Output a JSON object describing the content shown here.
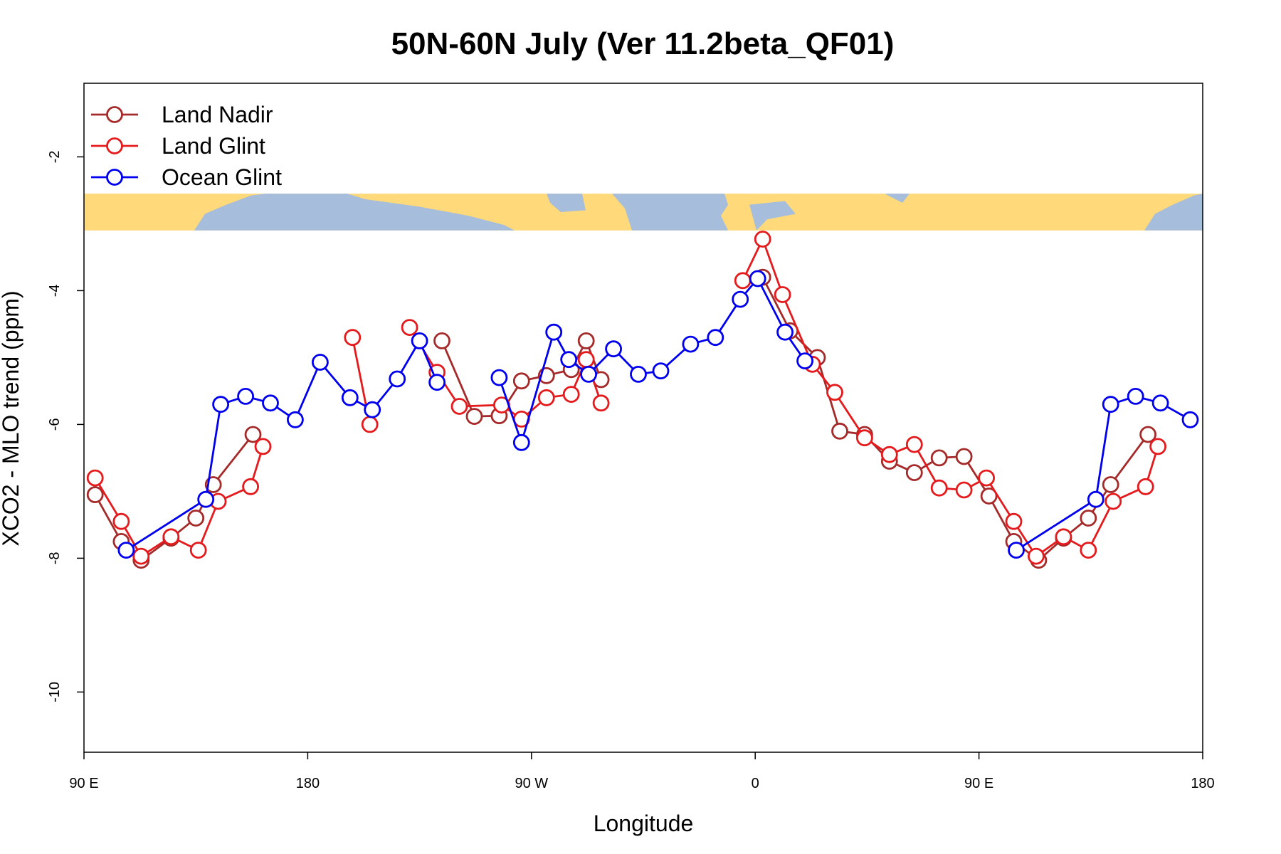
{
  "chart_data": {
    "type": "line",
    "title": "50N-60N July (Ver 11.2beta_QF01)",
    "xlabel": "Longitude",
    "ylabel": "XCO2 - MLO trend (ppm)",
    "xlim": [
      90,
      540
    ],
    "ylim": [
      -10.9,
      -0.9
    ],
    "x_ticks": [
      {
        "value": 90,
        "label": "90 E"
      },
      {
        "value": 180,
        "label": "180"
      },
      {
        "value": 270,
        "label": "90 W"
      },
      {
        "value": 360,
        "label": "0"
      },
      {
        "value": 450,
        "label": "90 E"
      },
      {
        "value": 540,
        "label": "180"
      }
    ],
    "y_ticks": [
      {
        "value": -2,
        "label": "-2"
      },
      {
        "value": -4,
        "label": "-4"
      },
      {
        "value": -6,
        "label": "-6"
      },
      {
        "value": -8,
        "label": "-8"
      },
      {
        "value": -10,
        "label": "-10"
      }
    ],
    "map_band": {
      "y_top": -2.55,
      "y_bottom": -3.1,
      "land_color": "#FFD97A",
      "ocean_color": "#A6BDDB"
    },
    "legend_position": "top-left",
    "series": [
      {
        "name": "Land Nadir",
        "color": "#A52A2A",
        "segments": [
          [
            [
              94.5,
              -7.05
            ],
            [
              105,
              -7.75
            ],
            [
              113,
              -8.03
            ],
            [
              125,
              -7.7
            ],
            [
              135,
              -7.4
            ],
            [
              142,
              -6.9
            ],
            [
              158,
              -6.15
            ]
          ],
          [
            [
              234,
              -4.75
            ],
            [
              247,
              -5.88
            ],
            [
              257,
              -5.87
            ],
            [
              266,
              -5.35
            ],
            [
              276,
              -5.27
            ],
            [
              286,
              -5.18
            ],
            [
              292,
              -4.75
            ],
            [
              298,
              -5.33
            ]
          ],
          [
            [
              363,
              -3.8
            ],
            [
              374,
              -4.6
            ],
            [
              385,
              -5.0
            ],
            [
              394,
              -6.1
            ],
            [
              404,
              -6.15
            ],
            [
              414,
              -6.55
            ],
            [
              424,
              -6.72
            ],
            [
              434,
              -6.5
            ],
            [
              444,
              -6.48
            ],
            [
              454,
              -7.07
            ],
            [
              464,
              -7.75
            ],
            [
              474,
              -8.03
            ],
            [
              484,
              -7.7
            ],
            [
              494,
              -7.4
            ],
            [
              503,
              -6.9
            ],
            [
              518,
              -6.15
            ]
          ]
        ]
      },
      {
        "name": "Land Glint",
        "color": "#E41A1C",
        "segments": [
          [
            [
              94.5,
              -6.8
            ],
            [
              105,
              -7.45
            ],
            [
              113,
              -7.97
            ],
            [
              125,
              -7.68
            ],
            [
              136,
              -7.88
            ],
            [
              144,
              -7.15
            ],
            [
              157,
              -6.93
            ],
            [
              162,
              -6.33
            ]
          ],
          [
            [
              198,
              -4.7
            ],
            [
              205,
              -6.0
            ]
          ],
          [
            [
              221,
              -4.55
            ],
            [
              232,
              -5.22
            ],
            [
              241,
              -5.73
            ],
            [
              258,
              -5.71
            ],
            [
              266,
              -5.92
            ],
            [
              276,
              -5.6
            ],
            [
              286,
              -5.55
            ],
            [
              292,
              -5.03
            ],
            [
              298,
              -5.68
            ]
          ],
          [
            [
              355,
              -3.85
            ],
            [
              363,
              -3.23
            ],
            [
              371,
              -4.06
            ],
            [
              383,
              -5.1
            ],
            [
              392,
              -5.52
            ],
            [
              404,
              -6.2
            ],
            [
              414,
              -6.45
            ],
            [
              424,
              -6.3
            ],
            [
              434,
              -6.95
            ],
            [
              444,
              -6.98
            ],
            [
              453,
              -6.8
            ],
            [
              464,
              -7.45
            ],
            [
              473,
              -7.97
            ],
            [
              484,
              -7.68
            ],
            [
              494,
              -7.88
            ],
            [
              504,
              -7.15
            ],
            [
              517,
              -6.93
            ],
            [
              522,
              -6.33
            ]
          ]
        ]
      },
      {
        "name": "Ocean Glint",
        "color": "#0000EE",
        "segments": [
          [
            [
              107,
              -7.88
            ],
            [
              139,
              -7.12
            ],
            [
              145,
              -5.7
            ],
            [
              155,
              -5.58
            ],
            [
              165,
              -5.68
            ],
            [
              175,
              -5.93
            ],
            [
              185,
              -5.07
            ],
            [
              197,
              -5.6
            ],
            [
              206,
              -5.78
            ],
            [
              216,
              -5.32
            ],
            [
              225,
              -4.75
            ],
            [
              232,
              -5.37
            ]
          ],
          [
            [
              257,
              -5.3
            ],
            [
              266,
              -6.27
            ],
            [
              279,
              -4.62
            ],
            [
              285,
              -5.03
            ],
            [
              293,
              -5.25
            ],
            [
              303,
              -4.87
            ],
            [
              313,
              -5.25
            ],
            [
              322,
              -5.2
            ],
            [
              334,
              -4.8
            ],
            [
              344,
              -4.7
            ],
            [
              354,
              -4.13
            ],
            [
              361,
              -3.82
            ],
            [
              372,
              -4.62
            ],
            [
              380,
              -5.05
            ]
          ],
          [
            [
              465,
              -7.88
            ],
            [
              497,
              -7.12
            ],
            [
              503,
              -5.7
            ],
            [
              513,
              -5.58
            ],
            [
              523,
              -5.68
            ],
            [
              535,
              -5.93
            ]
          ]
        ]
      }
    ]
  }
}
